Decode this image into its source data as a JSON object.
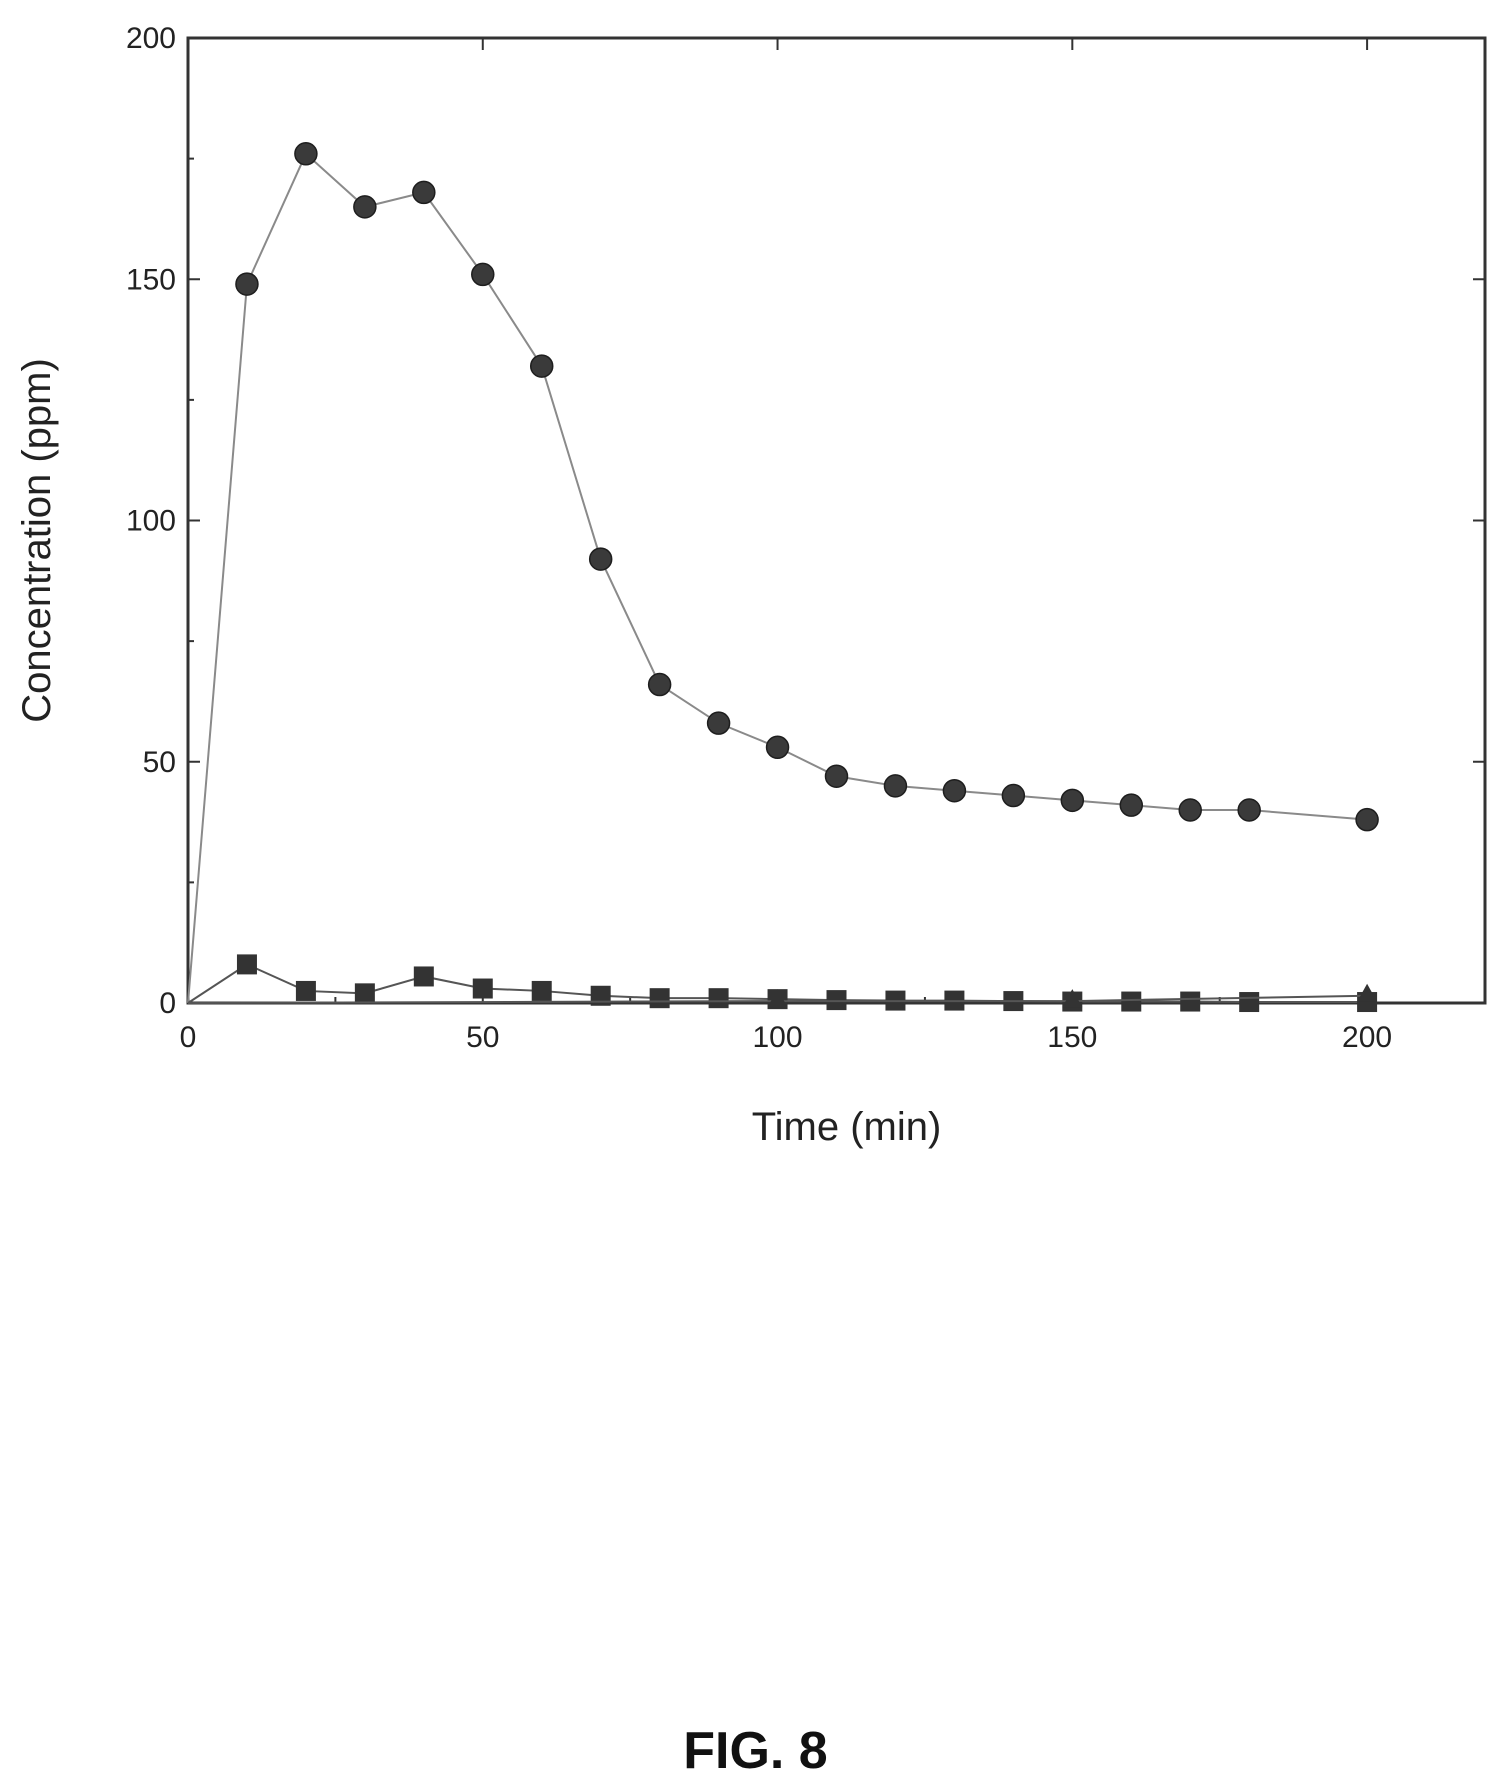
{
  "figure": {
    "caption": "FIG. 8"
  },
  "chart_data": {
    "type": "line",
    "title": "",
    "xlabel": "Time (min)",
    "ylabel": "Concentration (ppm)",
    "xlim": [
      0,
      220
    ],
    "ylim": [
      0,
      200
    ],
    "x_ticks": [
      0,
      50,
      100,
      150,
      200
    ],
    "y_ticks": [
      0,
      50,
      100,
      150,
      200
    ],
    "grid": false,
    "legend": "none",
    "series": [
      {
        "marker": "circle",
        "color": "#3a3a3a",
        "line_color": "#8a8a8a",
        "x": [
          0,
          10,
          20,
          30,
          40,
          50,
          60,
          70,
          80,
          90,
          100,
          110,
          120,
          130,
          140,
          150,
          160,
          170,
          180,
          200
        ],
        "values": [
          0,
          149,
          176,
          165,
          168,
          151,
          132,
          92,
          66,
          58,
          53,
          47,
          45,
          44,
          43,
          42,
          41,
          40,
          40,
          38
        ]
      },
      {
        "marker": "square",
        "color": "#333333",
        "line_color": "#555555",
        "x": [
          0,
          10,
          20,
          30,
          40,
          50,
          60,
          70,
          80,
          90,
          100,
          110,
          120,
          130,
          140,
          150,
          160,
          170,
          180,
          200
        ],
        "values": [
          0,
          8,
          2.5,
          2,
          5.5,
          3,
          2.5,
          1.5,
          1,
          1,
          0.8,
          0.6,
          0.5,
          0.5,
          0.4,
          0.3,
          0.3,
          0.3,
          0.2,
          0.2
        ]
      },
      {
        "marker": "triangle",
        "color": "#333333",
        "line_color": "#555555",
        "x": [
          0,
          100,
          150,
          200
        ],
        "values": [
          0,
          0.4,
          0.4,
          1.5
        ]
      }
    ]
  }
}
